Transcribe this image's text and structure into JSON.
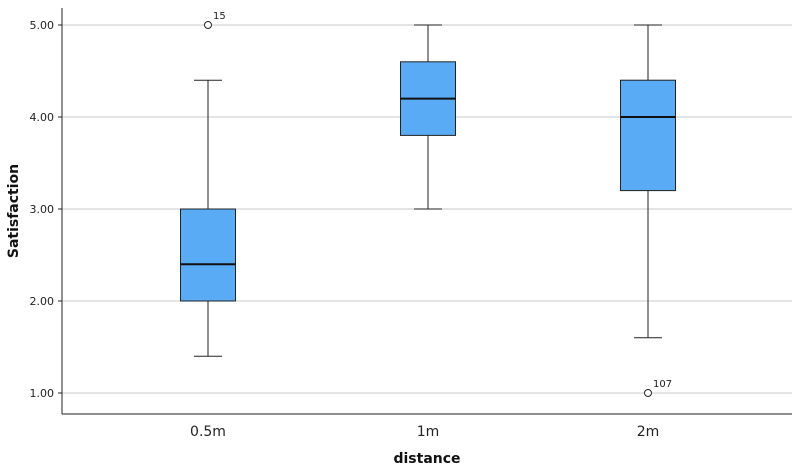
{
  "chart_data": {
    "type": "boxplot",
    "title": "",
    "xlabel": "distance",
    "ylabel": "Satisfaction",
    "ylim": [
      0.8,
      5.25
    ],
    "yticks": [
      "1.00",
      "2.00",
      "3.00",
      "4.00",
      "5.00"
    ],
    "grid": true,
    "box_color": "#5aabf5",
    "categories": [
      "0.5m",
      "1m",
      "2m"
    ],
    "boxes": [
      {
        "category": "0.5m",
        "whisker_low": 1.4,
        "q1": 2.0,
        "median": 2.4,
        "q3": 3.0,
        "whisker_high": 4.4,
        "outliers": [
          {
            "value": 5.0,
            "label": "15"
          }
        ]
      },
      {
        "category": "1m",
        "whisker_low": 3.0,
        "q1": 3.8,
        "median": 4.2,
        "q3": 4.6,
        "whisker_high": 5.0,
        "outliers": []
      },
      {
        "category": "2m",
        "whisker_low": 1.6,
        "q1": 3.2,
        "median": 4.0,
        "q3": 4.4,
        "whisker_high": 5.0,
        "outliers": [
          {
            "value": 1.0,
            "label": "107"
          }
        ]
      }
    ]
  }
}
